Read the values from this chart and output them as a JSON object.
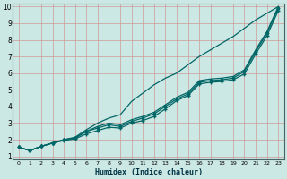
{
  "xlabel": "Humidex (Indice chaleur)",
  "bg_color": "#cce8e4",
  "grid_color": "#cc9999",
  "line_color": "#006666",
  "xlim": [
    -0.5,
    23.5
  ],
  "ylim": [
    0.8,
    10.2
  ],
  "xticks": [
    0,
    1,
    2,
    3,
    4,
    5,
    6,
    7,
    8,
    9,
    10,
    11,
    12,
    13,
    14,
    15,
    16,
    17,
    18,
    19,
    20,
    21,
    22,
    23
  ],
  "yticks": [
    1,
    2,
    3,
    4,
    5,
    6,
    7,
    8,
    9,
    10
  ],
  "series": {
    "line_upper_x": [
      0,
      1,
      2,
      3,
      4,
      5,
      6,
      7,
      8,
      9,
      10,
      11,
      12,
      13,
      14,
      15,
      16,
      17,
      18,
      19,
      20,
      21,
      22,
      23
    ],
    "line_upper_y": [
      1.55,
      1.35,
      1.6,
      1.8,
      2.0,
      2.15,
      2.6,
      3.0,
      3.3,
      3.5,
      4.3,
      4.8,
      5.3,
      5.7,
      6.0,
      6.5,
      7.0,
      7.4,
      7.8,
      8.2,
      8.7,
      9.2,
      9.6,
      10.0
    ],
    "line_a_x": [
      0,
      1,
      2,
      3,
      4,
      5,
      6,
      7,
      8,
      9,
      10,
      11,
      12,
      13,
      14,
      15,
      16,
      17,
      18,
      19,
      20,
      21,
      22,
      23
    ],
    "line_a_y": [
      1.55,
      1.35,
      1.6,
      1.8,
      2.0,
      2.1,
      2.5,
      2.7,
      2.9,
      2.8,
      3.1,
      3.3,
      3.55,
      4.0,
      4.45,
      4.75,
      5.45,
      5.55,
      5.6,
      5.7,
      6.1,
      7.3,
      8.4,
      9.9
    ],
    "line_b_x": [
      0,
      1,
      2,
      3,
      4,
      5,
      6,
      7,
      8,
      9,
      10,
      11,
      12,
      13,
      14,
      15,
      16,
      17,
      18,
      19,
      20,
      21,
      22,
      23
    ],
    "line_b_y": [
      1.55,
      1.35,
      1.6,
      1.8,
      1.95,
      2.05,
      2.35,
      2.55,
      2.75,
      2.7,
      3.0,
      3.15,
      3.4,
      3.85,
      4.35,
      4.65,
      5.35,
      5.45,
      5.5,
      5.6,
      5.95,
      7.15,
      8.25,
      9.75
    ],
    "line_c_x": [
      0,
      1,
      2,
      3,
      4,
      5,
      6,
      7,
      8,
      9,
      10,
      11,
      12,
      13,
      14,
      15,
      16,
      17,
      18,
      19,
      20,
      21,
      22,
      23
    ],
    "line_c_y": [
      1.55,
      1.35,
      1.6,
      1.8,
      2.0,
      2.1,
      2.5,
      2.8,
      3.0,
      2.9,
      3.2,
      3.4,
      3.65,
      4.1,
      4.55,
      4.85,
      5.55,
      5.65,
      5.7,
      5.8,
      6.2,
      7.4,
      8.5,
      10.0
    ]
  }
}
